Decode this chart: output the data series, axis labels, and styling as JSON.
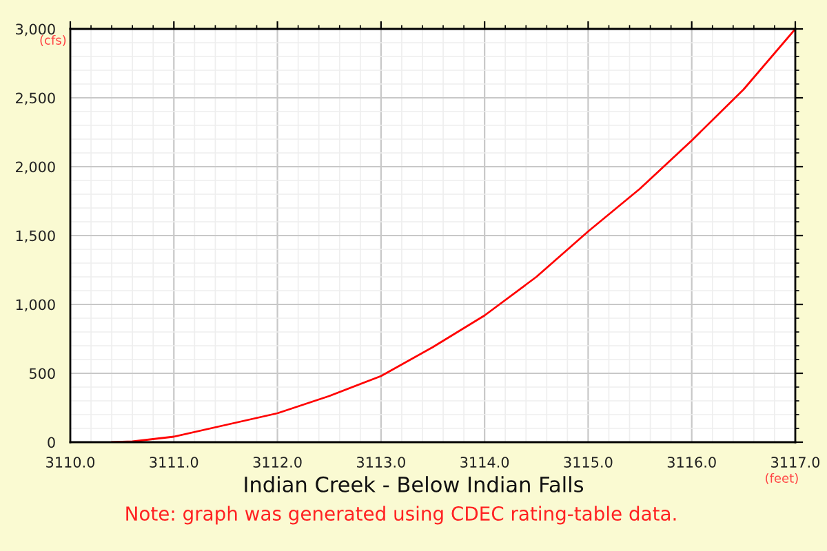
{
  "chart_data": {
    "type": "line",
    "title": "Indian Creek - Below Indian Falls",
    "xlabel": "(feet)",
    "ylabel": "(cfs)",
    "annotations": [
      "Note: graph was generated using CDEC rating-table data."
    ],
    "x": [
      3110.4,
      3110.6,
      3111.0,
      3111.5,
      3112.0,
      3112.5,
      3113.0,
      3113.5,
      3114.0,
      3114.5,
      3115.0,
      3115.5,
      3116.0,
      3116.5,
      3117.0
    ],
    "series": [
      {
        "color": "#ff0000",
        "values": [
          0,
          5,
          40,
          125,
          210,
          335,
          480,
          690,
          920,
          1200,
          1530,
          1840,
          2190,
          2560,
          3000
        ]
      }
    ],
    "xlim": [
      3110.0,
      3117.0
    ],
    "xticks": [
      {
        "value": 3110,
        "label": "3110.0"
      },
      {
        "value": 3111,
        "label": "3111.0"
      },
      {
        "value": 3112,
        "label": "3112.0"
      },
      {
        "value": 3113,
        "label": "3113.0"
      },
      {
        "value": 3114,
        "label": "3114.0"
      },
      {
        "value": 3115,
        "label": "3115.0"
      },
      {
        "value": 3116,
        "label": "3116.0"
      },
      {
        "value": 3117,
        "label": "3117.0"
      }
    ],
    "ylim": [
      0,
      3000
    ],
    "yticks": [
      0,
      500,
      {
        "value": 1000,
        "label": "1,000"
      },
      {
        "value": 1500,
        "label": "1,500"
      },
      {
        "value": 2000,
        "label": "2,000"
      },
      {
        "value": 2500,
        "label": "2,500"
      },
      {
        "value": 3000,
        "label": "3,000"
      }
    ],
    "grid": true,
    "legend": false,
    "marker": "none",
    "line_style": "solid"
  }
}
